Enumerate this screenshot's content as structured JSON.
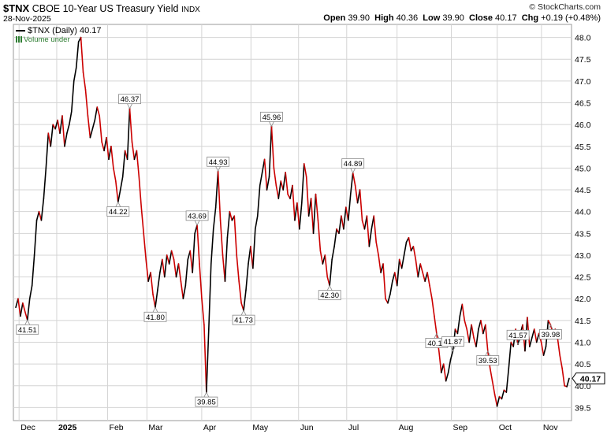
{
  "header": {
    "symbol": "$TNX",
    "description": "CBOE 10-Year US Treasury Yield",
    "exchange": "INDX",
    "date": "28-Nov-2025",
    "copyright": "© StockCharts.com",
    "ohlc": {
      "open_label": "Open",
      "open": "39.90",
      "high_label": "High",
      "high": "40.36",
      "low_label": "Low",
      "low": "39.90",
      "close_label": "Close",
      "close": "40.17",
      "chg_label": "Chg",
      "chg": "+0.19 (+0.48%)"
    }
  },
  "legend": {
    "series": "$TNX (Daily) 40.17",
    "volume": "Volume under"
  },
  "colors": {
    "up": "#000000",
    "down": "#cc0000",
    "grid": "#d4d4d4",
    "background": "#ffffff"
  },
  "chart_data": {
    "type": "line",
    "title": "$TNX CBOE 10-Year US Treasury Yield",
    "xlabel": "",
    "ylabel": "",
    "ylim": [
      39.2,
      48.3
    ],
    "y_ticks": [
      "39.5",
      "40.0",
      "40.5",
      "41.0",
      "41.5",
      "42.0",
      "42.5",
      "43.0",
      "43.5",
      "44.0",
      "44.5",
      "45.0",
      "45.5",
      "46.0",
      "46.5",
      "47.0",
      "47.5",
      "48.0"
    ],
    "x_ticks": [
      "Dec",
      "2025",
      "Feb",
      "Mar",
      "Apr",
      "May",
      "Jun",
      "Jul",
      "Aug",
      "Sep",
      "Oct",
      "Nov"
    ],
    "bold_x_ticks": [
      "2025"
    ],
    "last_value_label": "40.17",
    "grid": true,
    "legend_position": "top-left",
    "series": [
      {
        "name": "$TNX (Daily)",
        "values": [
          41.8,
          42.0,
          41.6,
          41.9,
          41.7,
          41.51,
          42.0,
          42.3,
          43.0,
          43.8,
          44.0,
          43.8,
          44.3,
          45.0,
          45.8,
          45.5,
          46.0,
          45.9,
          46.1,
          45.8,
          46.2,
          45.5,
          45.8,
          46.0,
          46.3,
          47.0,
          47.3,
          47.9,
          48.0,
          47.2,
          46.8,
          46.2,
          45.7,
          45.9,
          46.1,
          46.4,
          46.2,
          45.6,
          45.4,
          45.7,
          45.2,
          45.5,
          45.0,
          44.7,
          44.22,
          44.5,
          44.8,
          45.4,
          45.2,
          46.37,
          45.6,
          45.2,
          45.4,
          44.8,
          44.1,
          43.5,
          42.9,
          42.4,
          42.6,
          42.1,
          41.8,
          42.2,
          42.6,
          42.9,
          42.5,
          43.0,
          42.8,
          43.1,
          42.9,
          42.5,
          42.8,
          42.4,
          42.0,
          42.3,
          42.9,
          43.1,
          42.6,
          43.5,
          43.69,
          42.8,
          42.0,
          41.4,
          39.85,
          41.3,
          42.8,
          43.6,
          44.1,
          44.93,
          43.8,
          43.0,
          42.4,
          43.4,
          44.0,
          43.8,
          43.9,
          43.0,
          42.4,
          41.9,
          41.73,
          42.2,
          42.8,
          43.2,
          42.7,
          43.6,
          43.9,
          44.6,
          44.9,
          45.2,
          44.5,
          44.8,
          45.96,
          45.0,
          44.6,
          44.3,
          44.7,
          44.5,
          44.9,
          44.4,
          44.3,
          44.6,
          43.8,
          44.2,
          43.6,
          44.2,
          45.1,
          44.8,
          43.9,
          44.3,
          43.5,
          44.4,
          43.8,
          43.1,
          42.8,
          43.0,
          42.5,
          42.3,
          42.9,
          43.2,
          43.6,
          43.5,
          43.9,
          43.6,
          44.1,
          43.8,
          44.4,
          44.89,
          44.6,
          44.2,
          44.5,
          43.8,
          43.6,
          43.9,
          43.2,
          43.6,
          43.9,
          43.3,
          43.0,
          42.6,
          42.8,
          42.0,
          41.9,
          42.1,
          42.4,
          42.6,
          42.3,
          42.9,
          42.7,
          43.0,
          43.3,
          43.4,
          43.1,
          43.2,
          42.9,
          42.5,
          42.8,
          42.6,
          42.4,
          42.6,
          42.3,
          42.0,
          41.6,
          41.2,
          40.8,
          40.3,
          40.5,
          40.11,
          40.3,
          40.6,
          40.8,
          41.3,
          41.2,
          41.6,
          41.87,
          41.5,
          41.3,
          41.0,
          41.4,
          41.1,
          40.9,
          41.3,
          41.5,
          41.2,
          41.4,
          40.8,
          40.4,
          40.1,
          39.8,
          39.53,
          39.75,
          39.7,
          39.9,
          39.85,
          40.4,
          41.0,
          40.9,
          41.3,
          40.95,
          41.2,
          41.4,
          40.8,
          41.57,
          40.9,
          41.1,
          41.3,
          41.0,
          41.2,
          41.0,
          40.7,
          40.9,
          41.5,
          41.4,
          41.2,
          41.3,
          41.1,
          40.7,
          40.4,
          40.0,
          39.98,
          40.17
        ]
      }
    ],
    "annotations": [
      {
        "value": "41.51",
        "index": 5,
        "pos": "below"
      },
      {
        "value": "48.0",
        "index": 28,
        "pos": "none"
      },
      {
        "value": "44.22",
        "index": 44,
        "pos": "below"
      },
      {
        "value": "46.37",
        "index": 49,
        "pos": "above"
      },
      {
        "value": "41.80",
        "index": 60,
        "pos": "below"
      },
      {
        "value": "43.69",
        "index": 78,
        "pos": "above"
      },
      {
        "value": "39.85",
        "index": 82,
        "pos": "below"
      },
      {
        "value": "44.93",
        "index": 87,
        "pos": "above"
      },
      {
        "value": "41.73",
        "index": 98,
        "pos": "below"
      },
      {
        "value": "45.96",
        "index": 110,
        "pos": "above"
      },
      {
        "value": "42.30",
        "index": 135,
        "pos": "below"
      },
      {
        "value": "44.89",
        "index": 145,
        "pos": "above"
      },
      {
        "value": "40.11",
        "index": 181,
        "pos": "below"
      },
      {
        "value": "41.87",
        "index": 188,
        "pos": "above"
      },
      {
        "value": "39.53",
        "index": 203,
        "pos": "below"
      },
      {
        "value": "41.57",
        "index": 216,
        "pos": "above"
      },
      {
        "value": "39.98",
        "index": 230,
        "pos": "below"
      }
    ]
  }
}
